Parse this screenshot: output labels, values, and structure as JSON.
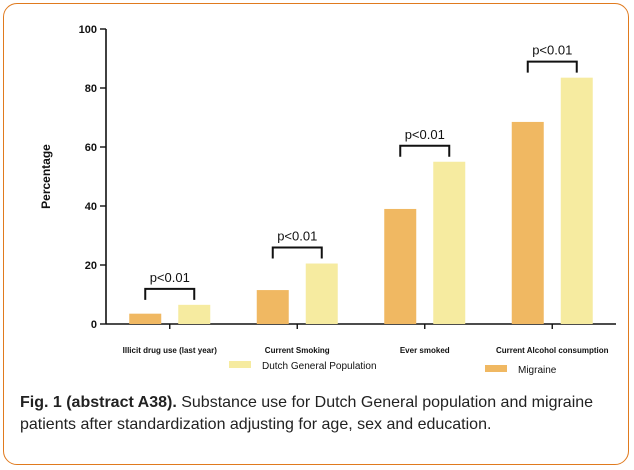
{
  "chart_data": {
    "type": "bar",
    "title": "",
    "xlabel": "",
    "ylabel": "Percentage",
    "ylim": [
      0,
      100
    ],
    "yticks": [
      0,
      20,
      40,
      60,
      80,
      100
    ],
    "categories": [
      "Illicit drug use (last year)",
      "Current Smoking",
      "Ever smoked",
      "Current Alcohol consumption"
    ],
    "series": [
      {
        "name": "Migraine",
        "color": "#f0b862",
        "values": [
          3.5,
          11.5,
          39,
          68.5
        ]
      },
      {
        "name": "Dutch General Population",
        "color": "#f6eba0",
        "values": [
          6.5,
          20.5,
          55,
          83.5
        ]
      }
    ],
    "annotations": [
      "p<0.01",
      "p<0.01",
      "p<0.01",
      "p<0.01"
    ],
    "legend_position": "bottom"
  },
  "caption": {
    "label": "Fig. 1 (abstract A38).",
    "text": " Substance use for Dutch General population and migraine patients after standardization adjusting for age, sex and education."
  }
}
